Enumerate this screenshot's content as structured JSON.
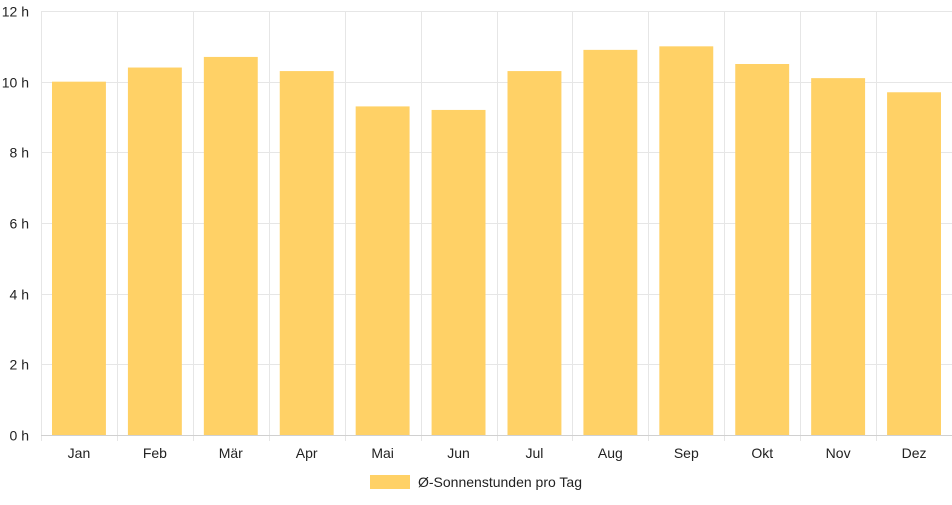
{
  "chart_data": {
    "type": "bar",
    "categories": [
      "Jan",
      "Feb",
      "Mär",
      "Apr",
      "Mai",
      "Jun",
      "Jul",
      "Aug",
      "Sep",
      "Okt",
      "Nov",
      "Dez"
    ],
    "series": [
      {
        "name": "Ø-Sonnenstunden pro Tag",
        "values": [
          10.0,
          10.4,
          10.7,
          10.3,
          9.3,
          9.2,
          10.3,
          10.9,
          11.0,
          10.5,
          10.1,
          9.7
        ],
        "color": "#ffd166"
      }
    ],
    "ylim": [
      0,
      12
    ],
    "yticks": [
      0,
      2,
      4,
      6,
      8,
      10,
      12
    ],
    "ytick_suffix": " h",
    "grid": true,
    "legend": "bottom"
  }
}
